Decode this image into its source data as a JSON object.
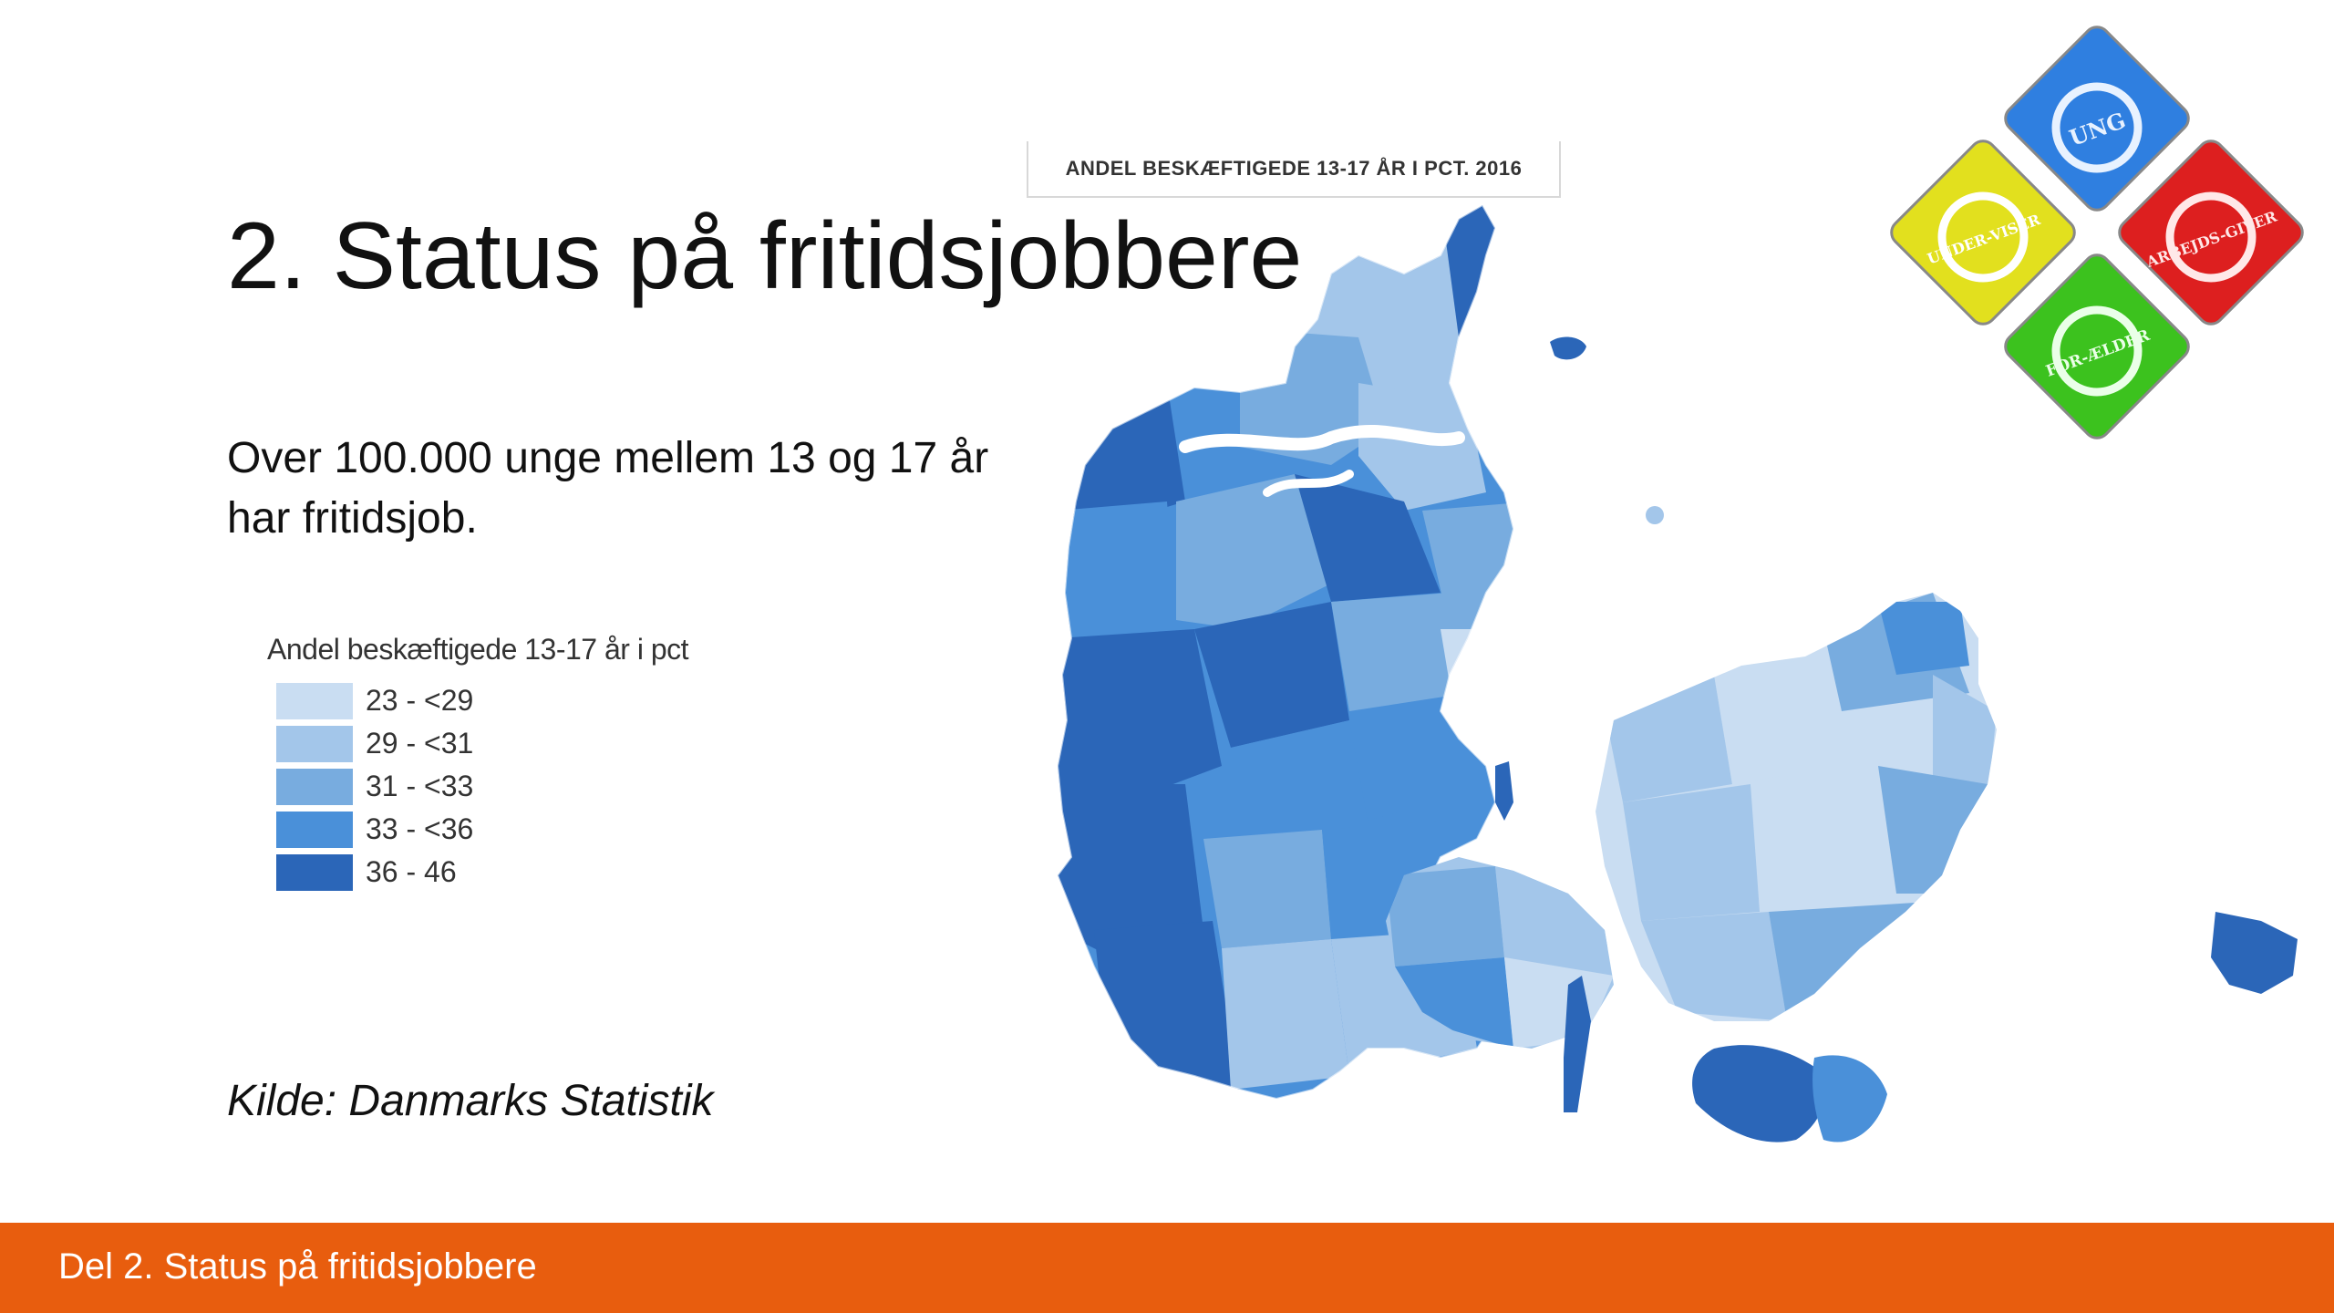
{
  "slide": {
    "title": "2. Status på fritidsjobbere",
    "body": "Over 100.000 unge mellem 13 og 17 år har fritidsjob.",
    "source": "Kilde: Danmarks Statistik",
    "footer": "Del 2. Status på fritidsjobbere"
  },
  "map": {
    "header": "ANDEL BESKÆFTIGEDE 13-17 ÅR I PCT. 2016",
    "legend": {
      "title": "Andel beskæftigede 13-17 år i pct",
      "items": [
        {
          "label": "23 - <29",
          "color": "#c9ddf2"
        },
        {
          "label": "29 - <31",
          "color": "#a3c6ea"
        },
        {
          "label": "31 - <33",
          "color": "#78acdf"
        },
        {
          "label": "33 - <36",
          "color": "#4a90d9"
        },
        {
          "label": "36 - 46",
          "color": "#2b66b8"
        }
      ]
    }
  },
  "logo": {
    "segments": [
      {
        "label": "UNG",
        "color": "#2f7fe0"
      },
      {
        "label": "UNDER-VISER",
        "color": "#e2e01e"
      },
      {
        "label": "ARBEJDS-GIVER",
        "color": "#dd1f1f"
      },
      {
        "label": "FOR-ÆLDER",
        "color": "#3cc21e"
      }
    ]
  }
}
